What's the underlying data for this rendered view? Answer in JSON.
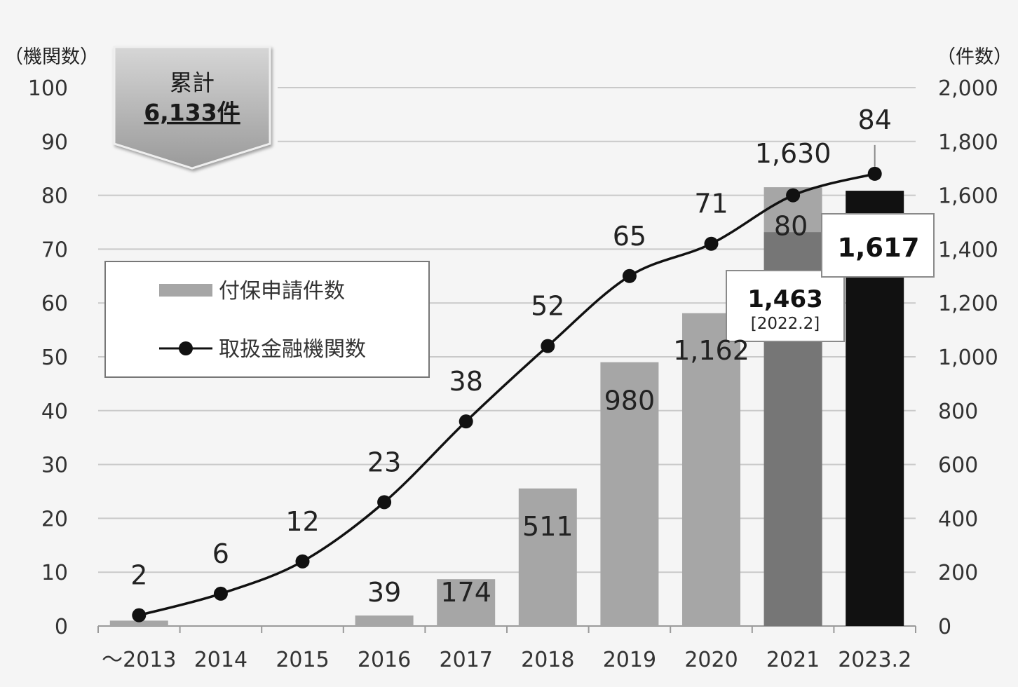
{
  "chart_data": {
    "type": "bar",
    "categories": [
      "～2013",
      "2014",
      "2015",
      "2016",
      "2017",
      "2018",
      "2019",
      "2020",
      "2021",
      "2023.2"
    ],
    "series": [
      {
        "name": "付保申請件数",
        "type": "bar",
        "axis": "right",
        "values": [
          20,
          0,
          0,
          39,
          174,
          511,
          980,
          1162,
          1630,
          1617
        ],
        "value_labels": [
          "",
          "",
          "",
          "39",
          "174",
          "511",
          "980",
          "1,162",
          "1,630",
          ""
        ],
        "colors": [
          "#a6a6a6",
          "#a6a6a6",
          "#a6a6a6",
          "#a6a6a6",
          "#a6a6a6",
          "#a6a6a6",
          "#a6a6a6",
          "#a6a6a6",
          "#a6a6a6",
          "#111111"
        ]
      },
      {
        "name": "取扱金融機関数",
        "type": "line",
        "axis": "left",
        "values": [
          2,
          6,
          12,
          23,
          38,
          52,
          65,
          71,
          80,
          84
        ],
        "value_labels": [
          "2",
          "6",
          "12",
          "23",
          "38",
          "52",
          "65",
          "71",
          "80",
          "84"
        ],
        "color": "#111111"
      }
    ],
    "inner_segments": [
      {
        "category": "2021",
        "value": 1463,
        "color": "#767676"
      }
    ],
    "annotations": [
      {
        "category": "2021",
        "value": 1463,
        "label": "1,463",
        "sub_label": "[2022.2]"
      },
      {
        "category": "2023.2",
        "value": 1617,
        "label": "1,617"
      }
    ],
    "total_badge": {
      "label": "累計",
      "value": "6,133件"
    },
    "y_left": {
      "label": "（機関数）",
      "min": 0,
      "max": 100,
      "ticks": [
        0,
        10,
        20,
        30,
        40,
        50,
        60,
        70,
        80,
        90,
        100
      ],
      "tick_labels": [
        "0",
        "10",
        "20",
        "30",
        "40",
        "50",
        "60",
        "70",
        "80",
        "90",
        "100"
      ]
    },
    "y_right": {
      "label": "（件数）",
      "min": 0,
      "max": 2000,
      "ticks": [
        0,
        200,
        400,
        600,
        800,
        1000,
        1200,
        1400,
        1600,
        1800,
        2000
      ],
      "tick_labels": [
        "0",
        "200",
        "400",
        "600",
        "800",
        "1,000",
        "1,200",
        "1,400",
        "1,600",
        "1,800",
        "2,000"
      ]
    },
    "grid": true,
    "legend_position": "left",
    "colors": {
      "background": "#f5f5f5",
      "grid": "#c9c9c9",
      "bar": "#a6a6a6",
      "bar_inner": "#767676",
      "bar_latest": "#111111",
      "line": "#111111"
    }
  }
}
